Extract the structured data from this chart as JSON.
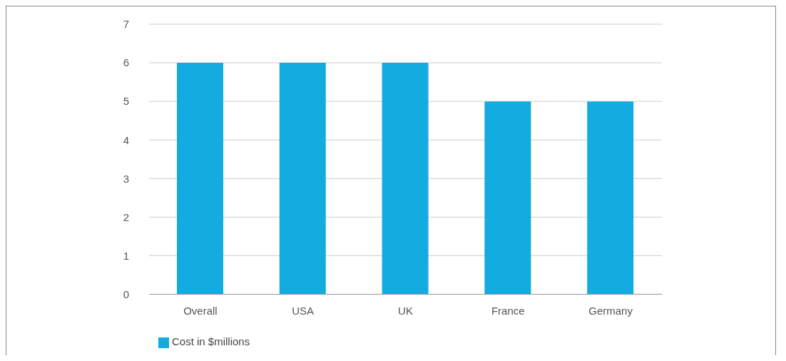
{
  "chart_data": {
    "type": "bar",
    "categories": [
      "Overall",
      "USA",
      "UK",
      "France",
      "Germany"
    ],
    "series": [
      {
        "name": "Cost in $millions",
        "color": "#13abe0",
        "values": [
          6,
          6,
          6,
          5,
          5
        ]
      }
    ],
    "ylim": [
      0,
      7
    ],
    "yticks": [
      0,
      1,
      2,
      3,
      4,
      5,
      6,
      7
    ],
    "grid": "y",
    "legend": "bottom left"
  }
}
